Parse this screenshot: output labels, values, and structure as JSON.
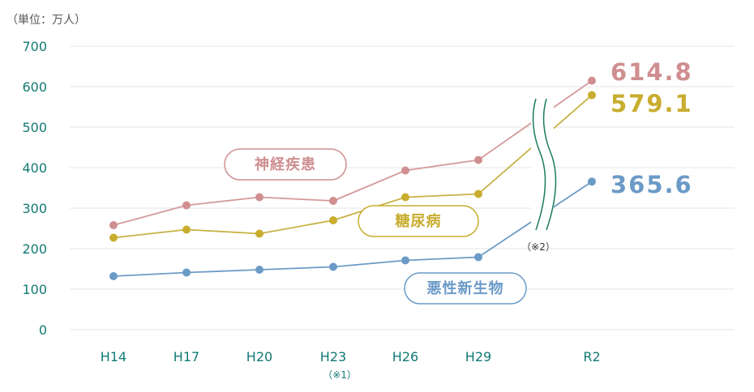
{
  "chart_data": {
    "type": "line",
    "unit_label": "（単位：万人）",
    "categories": [
      "H14",
      "H17",
      "H20",
      "H23",
      "H26",
      "H29",
      "R2"
    ],
    "category_note": {
      "category": "H23",
      "text": "（※1）"
    },
    "break_note": "（※2）",
    "ylim": [
      0,
      700
    ],
    "yticks": [
      0,
      100,
      200,
      300,
      400,
      500,
      600,
      700
    ],
    "grid": true,
    "series": [
      {
        "name": "神経疾患",
        "values": [
          258,
          307,
          327,
          318,
          393,
          419,
          614.8
        ],
        "final_label": "614.8",
        "color": "#d59a9a",
        "point_color": "#cf8f91"
      },
      {
        "name": "糖尿病",
        "values": [
          227,
          247,
          237,
          270,
          327,
          335,
          579.1
        ],
        "final_label": "579.1",
        "color": "#c7b145",
        "point_color": "#c8ad2f"
      },
      {
        "name": "悪性新生物",
        "values": [
          132,
          141,
          148,
          155,
          171,
          179,
          365.6
        ],
        "final_label": "365.6",
        "color": "#6c9bc6",
        "point_color": "#6b9ac7"
      }
    ],
    "colors": {
      "axis_text": "#127a74",
      "grid": "#e6e6e6",
      "unit_text": "#555555",
      "break_line": "#1a7a62"
    }
  }
}
